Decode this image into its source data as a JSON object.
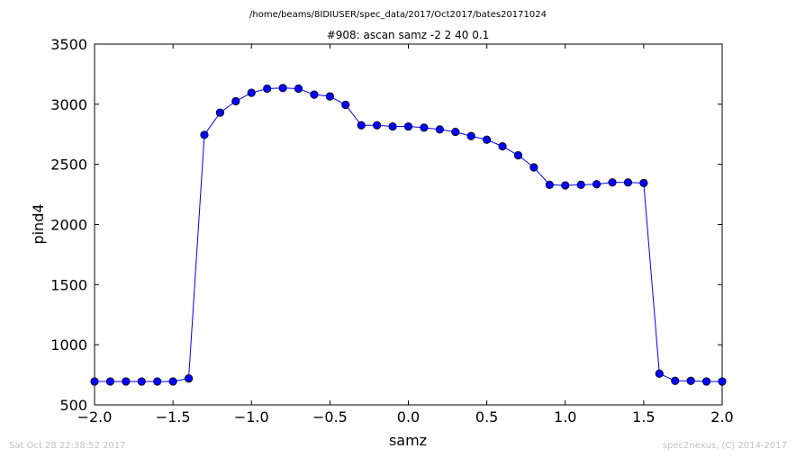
{
  "header": {
    "file_path": "/home/beams/8IDIUSER/spec_data/2017/Oct2017/bates20171024"
  },
  "footer": {
    "timestamp": "Sat Oct 28 22:38:52 2017",
    "credit": "spec2nexus, (C) 2014-2017"
  },
  "chart_data": {
    "type": "line",
    "title": "#908: ascan  samz -2 2  40 0.1",
    "xlabel": "samz",
    "ylabel": "pind4",
    "xlim": [
      -2.0,
      2.0
    ],
    "ylim": [
      500,
      3500
    ],
    "xticks": [
      "−2.0",
      "−1.5",
      "−1.0",
      "−0.5",
      "0.0",
      "0.5",
      "1.0",
      "1.5",
      "2.0"
    ],
    "yticks": [
      "500",
      "1000",
      "1500",
      "2000",
      "2500",
      "3000",
      "3500"
    ],
    "xtick_values": [
      -2.0,
      -1.5,
      -1.0,
      -0.5,
      0.0,
      0.5,
      1.0,
      1.5,
      2.0
    ],
    "ytick_values": [
      500,
      1000,
      1500,
      2000,
      2500,
      3000,
      3500
    ],
    "grid": false,
    "color": "#0000ff",
    "marker": "circle",
    "x": [
      -2.0,
      -1.9,
      -1.8,
      -1.7,
      -1.6,
      -1.5,
      -1.4,
      -1.3,
      -1.2,
      -1.1,
      -1.0,
      -0.9,
      -0.8,
      -0.7,
      -0.6,
      -0.5,
      -0.4,
      -0.3,
      -0.2,
      -0.1,
      0.0,
      0.1,
      0.2,
      0.3,
      0.4,
      0.5,
      0.6,
      0.7,
      0.8,
      0.9,
      1.0,
      1.1,
      1.2,
      1.3,
      1.4,
      1.5,
      1.6,
      1.7,
      1.8,
      1.9,
      2.0
    ],
    "y": [
      695,
      695,
      695,
      695,
      695,
      695,
      720,
      2745,
      2930,
      3025,
      3095,
      3130,
      3135,
      3130,
      3080,
      3065,
      2995,
      2825,
      2825,
      2815,
      2815,
      2805,
      2790,
      2770,
      2735,
      2705,
      2650,
      2575,
      2475,
      2330,
      2325,
      2330,
      2335,
      2350,
      2350,
      2345,
      760,
      700,
      700,
      695,
      695
    ]
  }
}
